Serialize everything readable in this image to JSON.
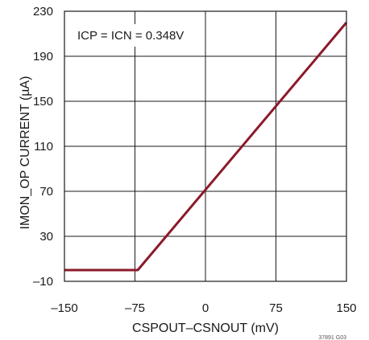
{
  "chart_data": {
    "type": "line",
    "xlabel": "CSPOUT–CSNOUT (mV)",
    "ylabel": "IMON_OP CURRENT (µA)",
    "xlim": [
      -150,
      150
    ],
    "ylim": [
      -10,
      230
    ],
    "x_ticks": [
      -150,
      -75,
      0,
      75,
      150
    ],
    "y_ticks": [
      -10,
      30,
      70,
      110,
      150,
      190,
      230
    ],
    "x_tick_labels": [
      "–150",
      "–75",
      "0",
      "75",
      "150"
    ],
    "y_tick_labels": [
      "–10",
      "30",
      "70",
      "110",
      "150",
      "190",
      "230"
    ],
    "grid": true,
    "annotation": "ICP = ICN = 0.348V",
    "figure_id": "37891 G03",
    "series": [
      {
        "color": "#8b1a2b",
        "x": [
          -150,
          -72,
          150
        ],
        "y": [
          0,
          0,
          220
        ]
      }
    ]
  }
}
